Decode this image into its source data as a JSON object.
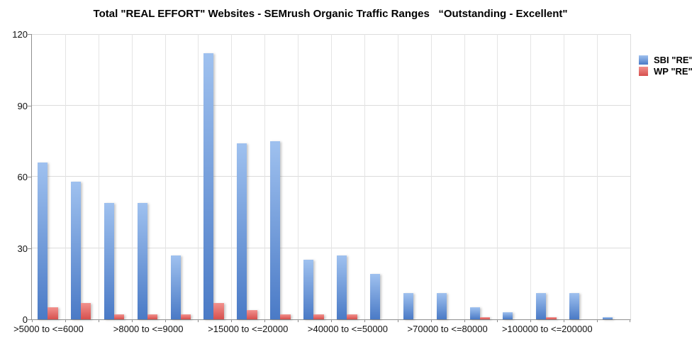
{
  "title": "Total \"REAL EFFORT\" Websites - SEMrush Organic Traffic Ranges   “Outstanding - Excellent\"",
  "chart_data": {
    "type": "bar",
    "title": "Total \"REAL EFFORT\" Websites - SEMrush Organic Traffic Ranges   “Outstanding - Excellent\"",
    "categories": [
      ">5000 to <=6000",
      "",
      "",
      ">8000 to <=9000",
      "",
      "",
      ">15000 to <=20000",
      "",
      "",
      ">40000 to <=50000",
      "",
      "",
      ">70000 to <=80000",
      "",
      "",
      ">100000 to <=200000",
      "",
      ""
    ],
    "label_every": 3,
    "series": [
      {
        "name": "SBI \"RE\"",
        "gradient_top": "#9fc1ef",
        "gradient_bottom": "#4a7ac6",
        "values": [
          66,
          58,
          49,
          49,
          27,
          112,
          74,
          75,
          25,
          27,
          19,
          11,
          11,
          5,
          3,
          11,
          11,
          1
        ]
      },
      {
        "name": "WP \"RE\"",
        "gradient_top": "#f2918d",
        "gradient_bottom": "#d6504e",
        "values": [
          5,
          7,
          2,
          2,
          2,
          7,
          4,
          2,
          2,
          2,
          0,
          0,
          0,
          1,
          0,
          1,
          0,
          0
        ]
      }
    ],
    "y_ticks": [
      0,
      30,
      60,
      90,
      120
    ],
    "ylim": [
      0,
      120
    ],
    "grid": true,
    "legend_position": "top-right",
    "gridline_color": "#dcdcdc",
    "axis_color": "#8f8f8f"
  }
}
